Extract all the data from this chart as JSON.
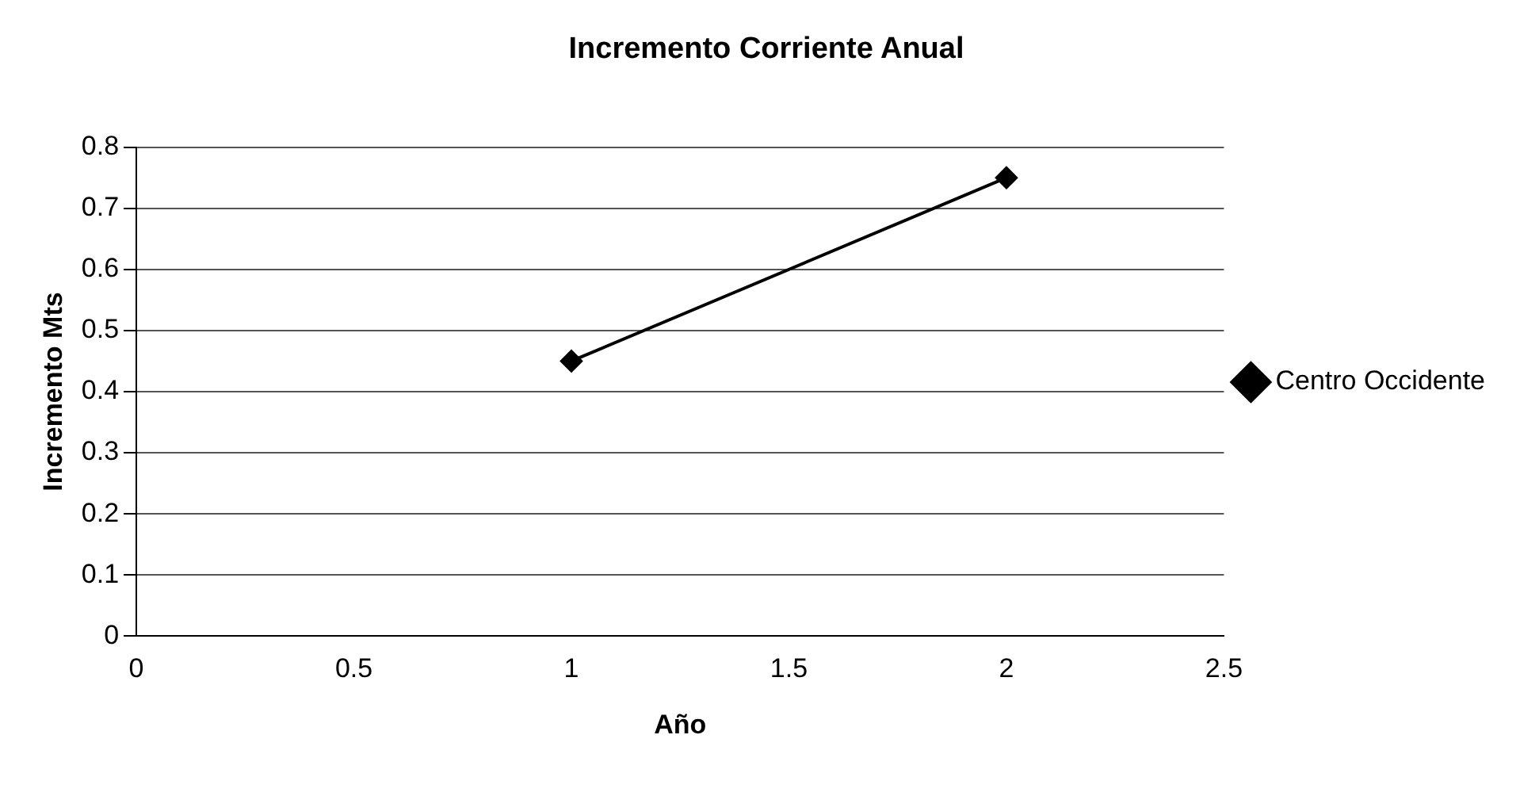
{
  "chart_data": {
    "type": "line",
    "title": "Incremento Corriente Anual",
    "xlabel": "Año",
    "ylabel": "Incremento Mts",
    "x": [
      1,
      2
    ],
    "series": [
      {
        "name": "Centro Occidente",
        "color": "#000000",
        "values": [
          0.45,
          0.75
        ]
      }
    ],
    "xlim": [
      0,
      2.5
    ],
    "xticks": [
      0,
      0.5,
      1,
      1.5,
      2,
      2.5
    ],
    "ylim": [
      0,
      0.8
    ],
    "yticks": [
      0,
      0.1,
      0.2,
      0.3,
      0.4,
      0.5,
      0.6,
      0.7,
      0.8
    ],
    "grid": "y",
    "legend": "right",
    "marker": "diamond",
    "line_style": "solid"
  }
}
